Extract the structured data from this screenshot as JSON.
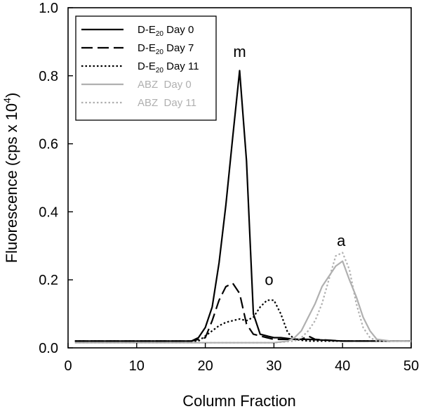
{
  "chart_data": {
    "type": "line",
    "xlabel": "Column Fraction",
    "ylabel": "Fluorescence (cps x 10",
    "ylabel_superscript": "4",
    "ylabel_close": ")",
    "xlim": [
      0,
      50
    ],
    "ylim": [
      0,
      1.0
    ],
    "xticks": [
      0,
      10,
      20,
      30,
      40,
      50
    ],
    "yticks": [
      0.0,
      0.2,
      0.4,
      0.6,
      0.8,
      1.0
    ],
    "ytick_labels": [
      "0.0",
      "0.2",
      "0.4",
      "0.6",
      "0.8",
      "1.0"
    ],
    "grid": false,
    "legend_position": "top-left",
    "annotations": [
      {
        "text": "m",
        "x": 25,
        "y": 0.855
      },
      {
        "text": "o",
        "x": 29.3,
        "y": 0.185
      },
      {
        "text": "a",
        "x": 39.8,
        "y": 0.3
      }
    ],
    "series": [
      {
        "name_main": "D-E",
        "name_sub": "20",
        "name_tail": " Day 0",
        "color": "#000000",
        "dash": "solid",
        "x": [
          1,
          5,
          10,
          15,
          18,
          19,
          20,
          21,
          22,
          23,
          24,
          25,
          26,
          27,
          28,
          29,
          30,
          31,
          33,
          35,
          40,
          45,
          50
        ],
        "y": [
          0.02,
          0.02,
          0.02,
          0.02,
          0.02,
          0.03,
          0.06,
          0.12,
          0.25,
          0.42,
          0.62,
          0.815,
          0.55,
          0.1,
          0.04,
          0.035,
          0.03,
          0.03,
          0.025,
          0.025,
          0.02,
          0.02,
          0.02
        ]
      },
      {
        "name_main": "D-E",
        "name_sub": "20",
        "name_tail": " Day 7",
        "color": "#000000",
        "dash": "dashed",
        "x": [
          1,
          5,
          10,
          15,
          18,
          20,
          21,
          22,
          23,
          24,
          25,
          26,
          27,
          28,
          29,
          30,
          31,
          32,
          34,
          35,
          36,
          40,
          45,
          50
        ],
        "y": [
          0.02,
          0.02,
          0.02,
          0.02,
          0.02,
          0.03,
          0.08,
          0.14,
          0.18,
          0.19,
          0.16,
          0.07,
          0.04,
          0.035,
          0.03,
          0.025,
          0.025,
          0.025,
          0.025,
          0.035,
          0.025,
          0.02,
          0.02,
          0.02
        ]
      },
      {
        "name_main": "D-E",
        "name_sub": "20",
        "name_tail": " Day 11",
        "color": "#000000",
        "dash": "dotted",
        "x": [
          1,
          5,
          10,
          15,
          18,
          19,
          20,
          21,
          22,
          23,
          24,
          25,
          26,
          27,
          28,
          29,
          30,
          31,
          32,
          33,
          35,
          40,
          45,
          50
        ],
        "y": [
          0.02,
          0.02,
          0.02,
          0.02,
          0.02,
          0.02,
          0.035,
          0.05,
          0.065,
          0.075,
          0.08,
          0.085,
          0.08,
          0.09,
          0.12,
          0.14,
          0.14,
          0.1,
          0.045,
          0.025,
          0.02,
          0.02,
          0.02,
          0.02
        ]
      },
      {
        "name_main": "ABZ",
        "name_sub": "",
        "name_tail": "  Day 0",
        "color": "#b0b0b0",
        "dash": "solid",
        "x": [
          1,
          10,
          20,
          30,
          32,
          33,
          34,
          35,
          36,
          37,
          38,
          39,
          40,
          41,
          42,
          43,
          44,
          45,
          47,
          50
        ],
        "y": [
          0.015,
          0.015,
          0.015,
          0.015,
          0.02,
          0.03,
          0.05,
          0.09,
          0.13,
          0.18,
          0.21,
          0.24,
          0.255,
          0.2,
          0.15,
          0.09,
          0.05,
          0.025,
          0.02,
          0.02
        ]
      },
      {
        "name_main": "ABZ",
        "name_sub": "",
        "name_tail": "  Day 11",
        "color": "#b0b0b0",
        "dash": "dotted",
        "x": [
          1,
          10,
          20,
          30,
          33,
          34,
          35,
          36,
          37,
          38,
          39,
          40,
          41,
          42,
          43,
          44,
          45,
          47,
          50
        ],
        "y": [
          0.015,
          0.015,
          0.015,
          0.015,
          0.02,
          0.03,
          0.05,
          0.08,
          0.13,
          0.2,
          0.27,
          0.28,
          0.23,
          0.13,
          0.06,
          0.03,
          0.02,
          0.02,
          0.02
        ]
      }
    ]
  }
}
